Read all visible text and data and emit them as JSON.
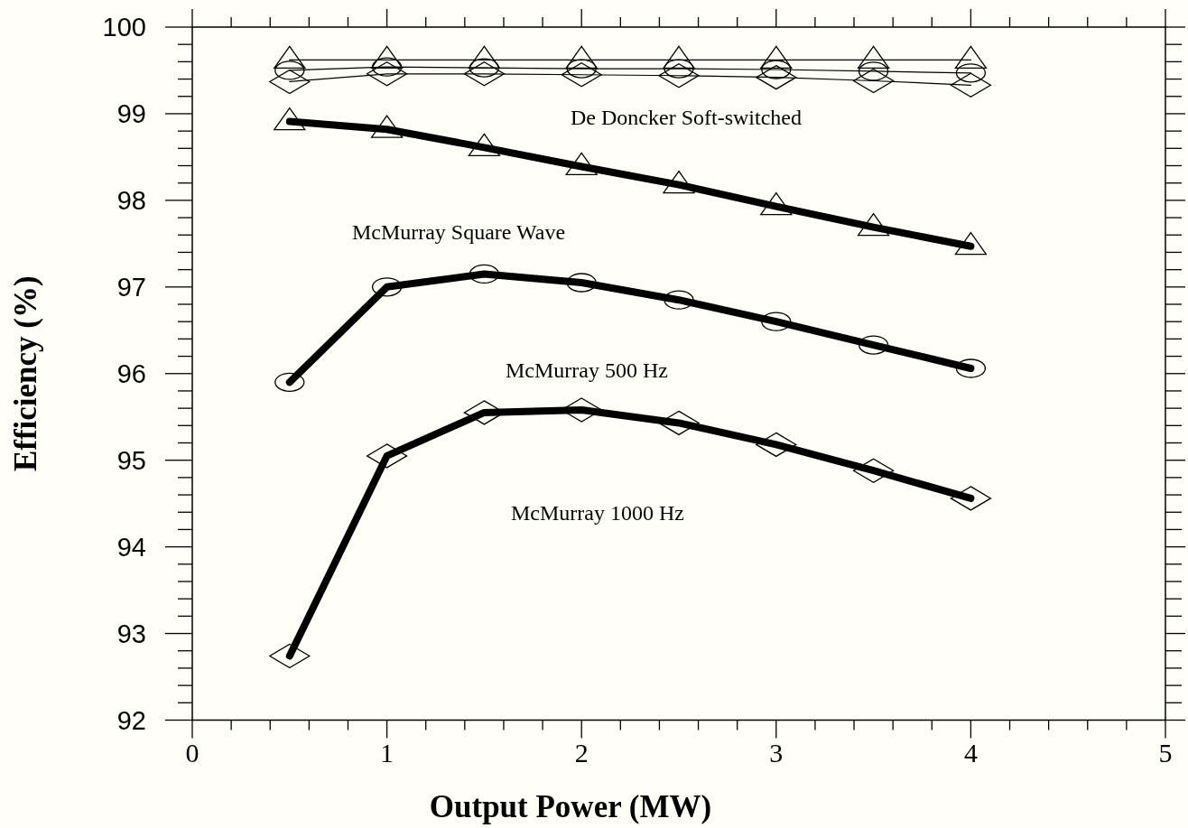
{
  "chart_data": {
    "type": "line",
    "xlabel": "Output Power (MW)",
    "ylabel": "Efficiency (%)",
    "x": [
      0.5,
      1,
      1.5,
      2,
      2.5,
      3,
      3.5,
      4
    ],
    "series": [
      {
        "color": "#000000",
        "marker": "triangle",
        "values": [
          99.62,
          99.62,
          99.62,
          99.62,
          99.62,
          99.62,
          99.62,
          99.62
        ]
      },
      {
        "color": "#000000",
        "marker": "circle",
        "values": [
          99.5,
          99.54,
          99.53,
          99.52,
          99.52,
          99.51,
          99.49,
          99.47
        ]
      },
      {
        "color": "#000000",
        "marker": "diamond",
        "values": [
          99.37,
          99.46,
          99.46,
          99.45,
          99.44,
          99.42,
          99.38,
          99.33
        ]
      },
      {
        "color": "#000000",
        "marker": "triangle",
        "values": [
          98.91,
          98.82,
          98.61,
          98.39,
          98.18,
          97.93,
          97.69,
          97.47
        ]
      },
      {
        "color": "#000000",
        "marker": "circle",
        "values": [
          95.9,
          97.0,
          97.15,
          97.05,
          96.85,
          96.6,
          96.33,
          96.06
        ]
      },
      {
        "color": "#000000",
        "marker": "diamond",
        "values": [
          92.74,
          95.05,
          95.55,
          95.58,
          95.43,
          95.18,
          94.88,
          94.56
        ]
      }
    ],
    "annotations": [
      "De Doncker Soft-switched",
      "McMurray Square Wave",
      "McMurray 500 Hz",
      "McMurray 1000 Hz"
    ],
    "xlim": [
      0,
      5
    ],
    "ylim": [
      92,
      100
    ],
    "xticks": [
      0,
      {
        "value": 0.2,
        "label": null
      },
      {
        "value": 0.4,
        "label": null
      },
      {
        "value": 0.6,
        "label": null
      },
      {
        "value": 0.8,
        "label": null
      },
      1,
      {
        "value": 1.2,
        "label": null
      },
      {
        "value": 1.4,
        "label": null
      },
      {
        "value": 1.6,
        "label": null
      },
      {
        "value": 1.8,
        "label": null
      },
      2,
      {
        "value": 2.2,
        "label": null
      },
      {
        "value": 2.4,
        "label": null
      },
      {
        "value": 2.6,
        "label": null
      },
      {
        "value": 2.8,
        "label": null
      },
      3,
      {
        "value": 3.2,
        "label": null
      },
      {
        "value": 3.4,
        "label": null
      },
      {
        "value": 3.6,
        "label": null
      },
      {
        "value": 3.8,
        "label": null
      },
      4,
      {
        "value": 4.2,
        "label": null
      },
      {
        "value": 4.4,
        "label": null
      },
      {
        "value": 4.6,
        "label": null
      },
      {
        "value": 4.8,
        "label": null
      },
      5
    ],
    "yticks": [
      92,
      {
        "value": 92.2,
        "label": null
      },
      {
        "value": 92.4,
        "label": null
      },
      {
        "value": 92.6,
        "label": null
      },
      {
        "value": 92.8,
        "label": null
      },
      93,
      {
        "value": 93.2,
        "label": null
      },
      {
        "value": 93.4,
        "label": null
      },
      {
        "value": 93.6,
        "label": null
      },
      {
        "value": 93.8,
        "label": null
      },
      94,
      {
        "value": 94.2,
        "label": null
      },
      {
        "value": 94.4,
        "label": null
      },
      {
        "value": 94.6,
        "label": null
      },
      {
        "value": 94.8,
        "label": null
      },
      95,
      {
        "value": 95.2,
        "label": null
      },
      {
        "value": 95.4,
        "label": null
      },
      {
        "value": 95.6,
        "label": null
      },
      {
        "value": 95.8,
        "label": null
      },
      96,
      {
        "value": 96.2,
        "label": null
      },
      {
        "value": 96.4,
        "label": null
      },
      {
        "value": 96.6,
        "label": null
      },
      {
        "value": 96.8,
        "label": null
      },
      97,
      {
        "value": 97.2,
        "label": null
      },
      {
        "value": 97.4,
        "label": null
      },
      {
        "value": 97.6,
        "label": null
      },
      {
        "value": 97.8,
        "label": null
      },
      98,
      {
        "value": 98.2,
        "label": null
      },
      {
        "value": 98.4,
        "label": null
      },
      {
        "value": 98.6,
        "label": null
      },
      {
        "value": 98.8,
        "label": null
      },
      99,
      {
        "value": 99.2,
        "label": null
      },
      {
        "value": 99.4,
        "label": null
      },
      {
        "value": 99.6,
        "label": null
      },
      {
        "value": 99.8,
        "label": null
      },
      100
    ],
    "grid": false
  }
}
